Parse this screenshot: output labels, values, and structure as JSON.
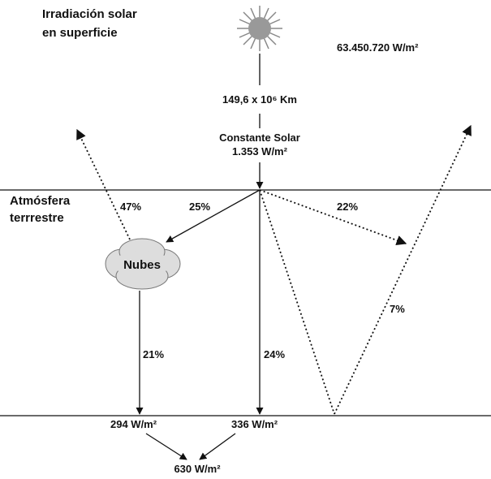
{
  "title": {
    "line1": "Irradiación solar",
    "line2": "en superficie"
  },
  "sun_irradiance": "63.450.720 W/m²",
  "distance": "149,6 x 10⁶ Km",
  "solar_constant": {
    "label": "Constante Solar",
    "value": "1.353 W/m²"
  },
  "atmosphere": {
    "line1": "Atmósfera",
    "line2": "terrrestre"
  },
  "cloud": "Nubes",
  "flows": {
    "reflected_clouds": "47%",
    "to_clouds": "25%",
    "scattered": "22%",
    "ground_reflected": "7%",
    "through_clouds": "21%",
    "direct": "24%"
  },
  "ground": {
    "diffuse": "294 W/m²",
    "direct": "336 W/m²",
    "total": "630 W/m²"
  }
}
